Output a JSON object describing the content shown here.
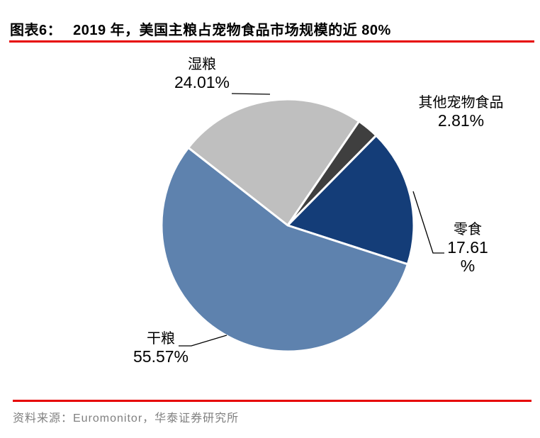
{
  "header": {
    "tag": "图表6：",
    "title": "2019 年，美国主粮占宠物食品市场规模的近 80%"
  },
  "footer": {
    "source": "资料来源：Euromonitor，华泰证券研究所"
  },
  "colors": {
    "rule_red": "#e60000",
    "title_text": "#000000",
    "source_text": "#808080",
    "leader_line": "#000000",
    "slice_dry": "#5e82ae",
    "slice_wet": "#bfbfbf",
    "slice_treats": "#143d78",
    "slice_other": "#3f3f3f"
  },
  "chart_data": {
    "type": "pie",
    "title": "2019 年，美国主粮占宠物食品市场规模的近 80%",
    "unit": "%",
    "direction": "clockwise",
    "start_angle_math_deg": 142,
    "legend_position": "none",
    "slices": [
      {
        "label": "湿粮",
        "value": 24.01,
        "display": "24.01%",
        "color": "#bfbfbf"
      },
      {
        "label": "其他宠物食品",
        "value": 2.81,
        "display": "2.81%",
        "color": "#3f3f3f"
      },
      {
        "label": "零食",
        "value": 17.61,
        "display": "17.61\n%",
        "color": "#143d78"
      },
      {
        "label": "干粮",
        "value": 55.57,
        "display": "55.57%",
        "color": "#5e82ae"
      }
    ]
  }
}
